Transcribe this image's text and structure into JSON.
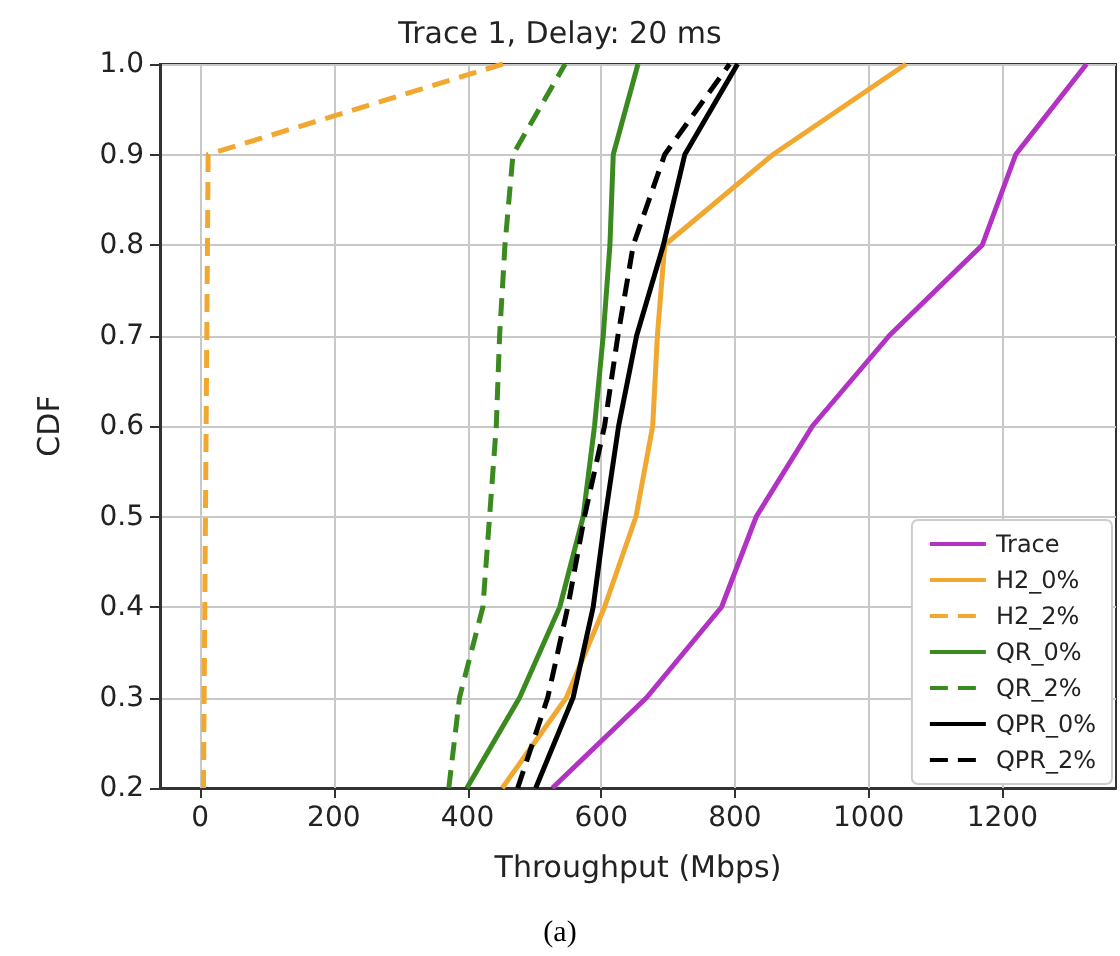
{
  "chart_data": {
    "type": "line",
    "title": "Trace 1, Delay: 20 ms",
    "xlabel": "Throughput (Mbps)",
    "ylabel": "CDF",
    "annotations": [
      "(a)"
    ],
    "series": [
      {
        "name": "Trace",
        "color": "#b232c4",
        "line_style": "solid",
        "x": [
          527,
          668,
          780,
          832,
          916,
          1031,
          1170,
          1220,
          1326
        ],
        "values": [
          0.2,
          0.3,
          0.4,
          0.5,
          0.6,
          0.7,
          0.8,
          0.9,
          1.0
        ]
      },
      {
        "name": "H2_0%",
        "color": "#f0a830",
        "line_style": "solid",
        "x": [
          452,
          548,
          605,
          652,
          677,
          684,
          695,
          857,
          1056
        ],
        "values": [
          0.2,
          0.3,
          0.4,
          0.5,
          0.6,
          0.7,
          0.8,
          0.9,
          1.0
        ]
      },
      {
        "name": "H2_2%",
        "color": "#f0a830",
        "line_style": "dashed",
        "x": [
          5,
          12,
          453
        ],
        "values": [
          0.2,
          0.9,
          1.0
        ]
      },
      {
        "name": "QR_0%",
        "color": "#3a8a20",
        "line_style": "solid",
        "x": [
          399,
          478,
          538,
          573,
          590,
          603,
          613,
          618,
          655
        ],
        "values": [
          0.2,
          0.3,
          0.4,
          0.5,
          0.6,
          0.7,
          0.8,
          0.9,
          1.0
        ]
      },
      {
        "name": "QR_2%",
        "color": "#3a8a20",
        "line_style": "dashed",
        "x": [
          372,
          388,
          423,
          433,
          443,
          448,
          456,
          468,
          546
        ],
        "values": [
          0.2,
          0.3,
          0.4,
          0.5,
          0.6,
          0.7,
          0.8,
          0.9,
          1.0
        ]
      },
      {
        "name": "QPR_0%",
        "color": "#000000",
        "line_style": "solid",
        "x": [
          502,
          558,
          588,
          606,
          626,
          653,
          693,
          725,
          804
        ],
        "values": [
          0.2,
          0.3,
          0.4,
          0.5,
          0.6,
          0.7,
          0.8,
          0.9,
          1.0
        ]
      },
      {
        "name": "QPR_2%",
        "color": "#000000",
        "line_style": "dashed",
        "x": [
          475,
          520,
          550,
          575,
          605,
          625,
          648,
          695,
          792
        ],
        "values": [
          0.2,
          0.3,
          0.4,
          0.5,
          0.6,
          0.7,
          0.8,
          0.9,
          1.0
        ]
      }
    ],
    "xlim": [
      -60,
      1370
    ],
    "xticks": [
      0,
      200,
      400,
      600,
      800,
      {
        "value": 1000,
        "label": "1000"
      },
      {
        "value": 1200,
        "label": "1200"
      }
    ],
    "ylim": [
      0.2,
      1.0
    ],
    "yticks": [
      0.2,
      0.3,
      0.4,
      0.5,
      0.6,
      0.7,
      0.8,
      0.9,
      {
        "value": 1,
        "label": "1.0"
      }
    ],
    "grid": true,
    "legend": "bottom right",
    "marker": "none"
  }
}
